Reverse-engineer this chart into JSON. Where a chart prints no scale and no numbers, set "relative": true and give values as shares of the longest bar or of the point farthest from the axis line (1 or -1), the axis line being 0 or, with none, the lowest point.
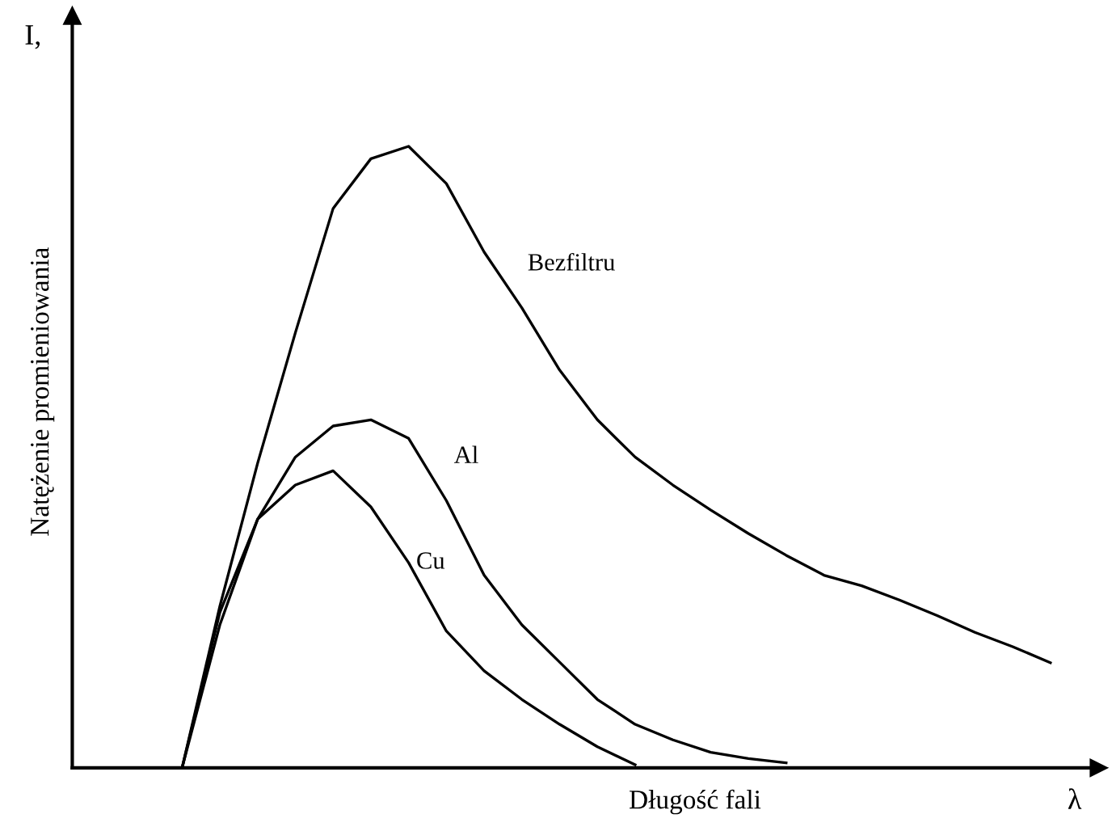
{
  "chart_data": {
    "type": "line",
    "relative": true,
    "ylabel": "Natężenie promieniowania",
    "xlabel": "Długość fali",
    "annotations": [
      "I,",
      "λ"
    ],
    "legend": false,
    "marker": "none",
    "line_style": "solid",
    "categories": [
      null,
      null,
      null,
      null,
      null,
      null,
      null,
      null,
      null,
      null,
      null,
      null,
      null,
      null,
      null,
      null,
      null,
      null,
      null,
      null,
      null,
      null,
      null,
      null
    ],
    "series": [
      {
        "name": "Bezfiltru",
        "color": "#000000",
        "values": [
          0,
          0.26,
          0.49,
          0.7,
          0.9,
          0.98,
          1,
          0.94,
          0.83,
          0.74,
          0.64,
          0.56,
          0.5,
          0.455,
          0.415,
          0.377,
          0.342,
          0.31,
          0.293,
          0.27,
          0.245,
          0.218,
          0.195,
          0.169
        ]
      },
      {
        "name": "Al",
        "color": "#000000",
        "values": [
          0,
          0.23,
          0.4,
          0.5,
          0.55,
          0.56,
          0.53,
          0.43,
          0.31,
          0.23,
          0.17,
          0.11,
          0.07,
          0.045,
          0.025,
          0.015,
          0.008,
          null,
          null,
          null,
          null,
          null,
          null,
          null
        ]
      },
      {
        "name": "Cu",
        "color": "#000000",
        "values": [
          0,
          0.25,
          0.4,
          0.455,
          0.478,
          0.42,
          0.33,
          0.22,
          0.156,
          0.11,
          0.07,
          0.034,
          0.005,
          null,
          null,
          null,
          null,
          null,
          null,
          null,
          null,
          null,
          null,
          null
        ]
      }
    ]
  }
}
